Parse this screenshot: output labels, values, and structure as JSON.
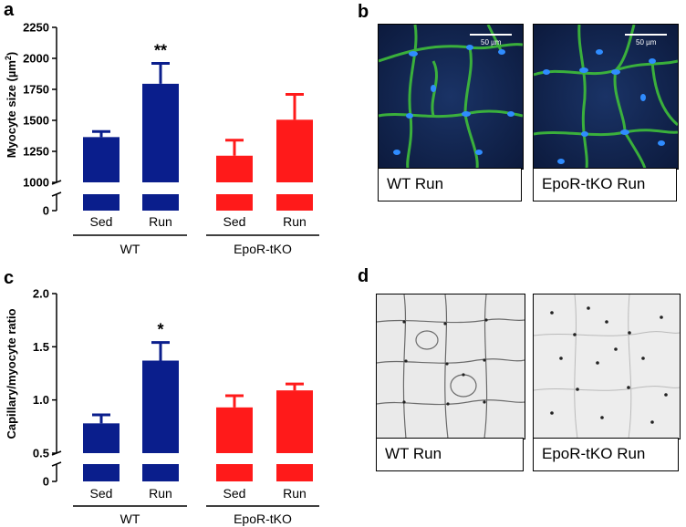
{
  "panels": {
    "a": "a",
    "b": "b",
    "c": "c",
    "d": "d"
  },
  "chart_data": [
    {
      "type": "bar",
      "panel": "a",
      "ylabel": "Myocyte size (µm²)",
      "ylabel_main": "Myocyte size (µm",
      "ylabel_sup": "2",
      "ylabel_tail": ")",
      "ylim": [
        1000,
        2250
      ],
      "yticks": [
        "0",
        "1000",
        "1250",
        "1500",
        "1750",
        "2000",
        "2250"
      ],
      "axis_break": true,
      "groups": [
        {
          "name": "WT",
          "color": "#0a1e8c",
          "categories": [
            "Sed",
            "Run"
          ],
          "values": [
            1365,
            1795
          ],
          "errors": [
            45,
            165
          ],
          "annotations": [
            "",
            "**"
          ]
        },
        {
          "name": "EpoR-tKO",
          "color": "#ff1a1a",
          "categories": [
            "Sed",
            "Run"
          ],
          "values": [
            1215,
            1505
          ],
          "errors": [
            125,
            205
          ],
          "annotations": [
            "",
            ""
          ]
        }
      ]
    },
    {
      "type": "bar",
      "panel": "c",
      "ylabel": "Capillary/myocyte ratio",
      "ylim": [
        0.5,
        2.0
      ],
      "yticks": [
        "0",
        "0.5",
        "1.0",
        "1.5",
        "2.0"
      ],
      "axis_break": true,
      "groups": [
        {
          "name": "WT",
          "color": "#0a1e8c",
          "categories": [
            "Sed",
            "Run"
          ],
          "values": [
            0.78,
            1.37
          ],
          "errors": [
            0.08,
            0.17
          ],
          "annotations": [
            "",
            "*"
          ]
        },
        {
          "name": "EpoR-tKO",
          "color": "#ff1a1a",
          "categories": [
            "Sed",
            "Run"
          ],
          "values": [
            0.93,
            1.09
          ],
          "errors": [
            0.11,
            0.06
          ],
          "annotations": [
            "",
            ""
          ]
        }
      ]
    }
  ],
  "images": {
    "b": [
      {
        "caption": "WT Run",
        "scale": "50 µm"
      },
      {
        "caption": "EpoR-tKO Run",
        "scale": "50 µm"
      }
    ],
    "d": [
      {
        "caption": "WT Run"
      },
      {
        "caption": "EpoR-tKO Run"
      }
    ]
  }
}
